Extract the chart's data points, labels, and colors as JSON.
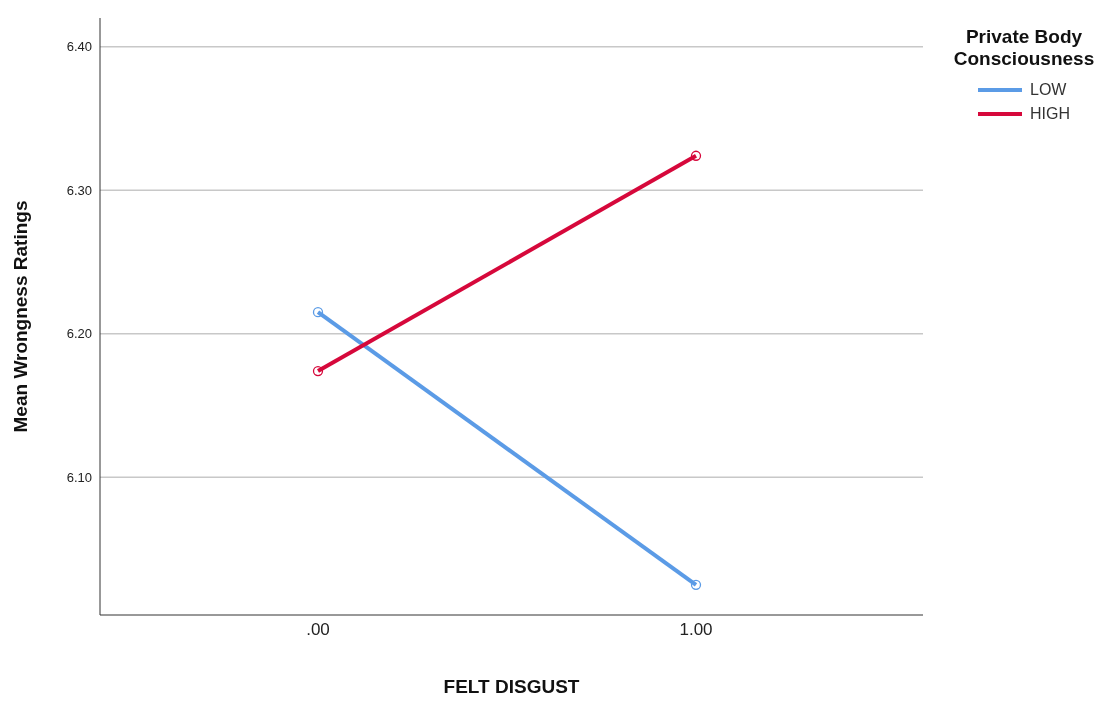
{
  "chart_data": {
    "type": "line",
    "xlabel": "FELT DISGUST",
    "ylabel": "Mean Wrongness Ratings",
    "legend_title": "Private Body Consciousness",
    "categories": [
      ".00",
      "1.00"
    ],
    "series": [
      {
        "name": "LOW",
        "color": "#5b9be6",
        "values": [
          6.215,
          6.025
        ]
      },
      {
        "name": "HIGH",
        "color": "#d6083b",
        "values": [
          6.174,
          6.324
        ]
      }
    ],
    "ylim": [
      6.004,
      6.42
    ],
    "yticks": [
      {
        "value": 6.1,
        "label": "6.10"
      },
      {
        "value": 6.2,
        "label": "6.20"
      },
      {
        "value": 6.3,
        "label": "6.30"
      },
      {
        "value": 6.4,
        "label": "6.40"
      }
    ],
    "grid": "y",
    "legend": "top right",
    "marker": "circle",
    "line_style": "solid"
  }
}
